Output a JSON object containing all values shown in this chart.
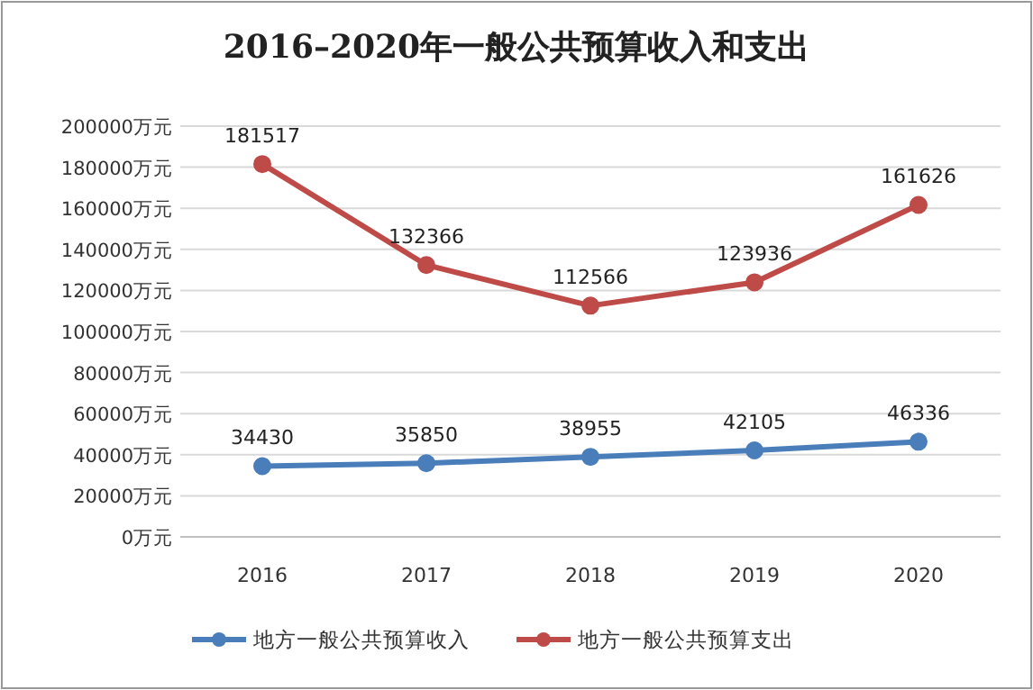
{
  "chart_data": {
    "type": "line",
    "title": "2016–2020年一般公共预算收入和支出",
    "categories": [
      "2016",
      "2017",
      "2018",
      "2019",
      "2020"
    ],
    "series": [
      {
        "name": "地方一般公共预算收入",
        "color": "#4a7ebb",
        "values": [
          34430,
          35850,
          38955,
          42105,
          46336
        ]
      },
      {
        "name": "地方一般公共预算支出",
        "color": "#be4b48",
        "values": [
          181517,
          132366,
          112566,
          123936,
          161626
        ]
      }
    ],
    "ylim": [
      0,
      200000
    ],
    "yticks": [
      {
        "value": 0,
        "label": "0万元"
      },
      {
        "value": 20000,
        "label": "20000万元"
      },
      {
        "value": 40000,
        "label": "40000万元"
      },
      {
        "value": 60000,
        "label": "60000万元"
      },
      {
        "value": 80000,
        "label": "80000万元"
      },
      {
        "value": 100000,
        "label": "100000万元"
      },
      {
        "value": 120000,
        "label": "120000万元"
      },
      {
        "value": 140000,
        "label": "140000万元"
      },
      {
        "value": 160000,
        "label": "160000万元"
      },
      {
        "value": 180000,
        "label": "180000万元"
      },
      {
        "value": 200000,
        "label": "200000万元"
      }
    ],
    "grid": "y",
    "legend": "bottom",
    "marker": "circle",
    "line_style": "solid",
    "data_labels": true
  }
}
